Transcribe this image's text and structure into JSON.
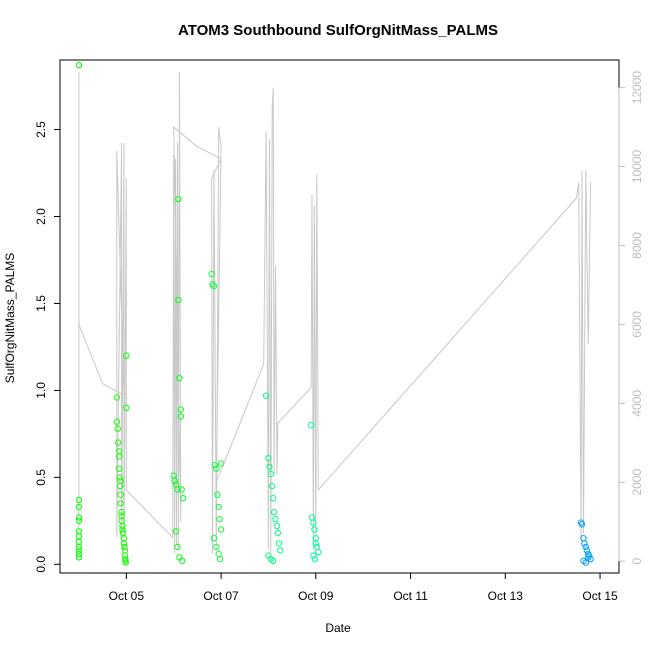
{
  "chart_data": {
    "type": "scatter",
    "title": "ATOM3 Southbound SulfOrgNitMass_PALMS",
    "xlabel": "Date",
    "ylabel": "SulfOrgNitMass_PALMS",
    "x_ticks": [
      "Oct 05",
      "Oct 07",
      "Oct 09",
      "Oct 11",
      "Oct 13",
      "Oct 15"
    ],
    "y_ticks": [
      "0.0",
      "0.5",
      "1.0",
      "1.5",
      "2.0",
      "2.5"
    ],
    "y2_ticks": [
      "0",
      "2000",
      "4000",
      "6000",
      "8000",
      "10000",
      "12000"
    ],
    "xlim": [
      "Oct 03.6",
      "Oct 15.4"
    ],
    "ylim": [
      -0.05,
      2.9
    ],
    "y2lim": [
      -300,
      12700
    ],
    "grid": false,
    "point_series": [
      {
        "name": "",
        "color": "#00ff00",
        "x": [
          4.0,
          4.0,
          4.0,
          4.0,
          4.0,
          4.0,
          4.0,
          4.0,
          4.0,
          4.0,
          4.0,
          4.0
        ],
        "y": [
          2.87,
          0.37,
          0.33,
          0.27,
          0.25,
          0.19,
          0.16,
          0.13,
          0.1,
          0.08,
          0.06,
          0.04
        ]
      },
      {
        "name": "",
        "color": "#14ff00",
        "x": [
          4.8,
          4.8,
          4.82,
          4.83,
          4.85,
          4.85,
          4.86,
          4.87,
          4.88,
          4.88,
          4.9,
          4.9,
          4.9,
          4.92,
          4.92,
          4.93,
          4.95,
          4.95,
          4.96,
          4.97,
          4.97,
          4.98,
          4.98,
          4.99,
          5.0,
          5.0,
          4.85,
          4.88
        ],
        "y": [
          0.96,
          0.82,
          0.78,
          0.7,
          0.62,
          0.55,
          0.5,
          0.45,
          0.4,
          0.35,
          0.3,
          0.28,
          0.25,
          0.22,
          0.2,
          0.18,
          0.15,
          0.12,
          0.1,
          0.08,
          0.05,
          0.03,
          0.02,
          0.01,
          1.2,
          0.9,
          0.65,
          0.48
        ]
      },
      {
        "name": "",
        "color": "#0aff1e",
        "x": [
          6.0,
          6.02,
          6.05,
          6.08,
          6.1,
          6.1,
          6.12,
          6.15,
          6.15,
          6.17,
          6.2,
          6.05,
          6.08,
          6.12,
          6.18
        ],
        "y": [
          0.51,
          0.48,
          0.46,
          0.43,
          2.1,
          1.52,
          1.07,
          0.89,
          0.85,
          0.43,
          0.38,
          0.19,
          0.1,
          0.04,
          0.02
        ]
      },
      {
        "name": "",
        "color": "#10ff3c",
        "x": [
          6.8,
          6.82,
          6.85,
          6.87,
          6.9,
          6.92,
          6.95,
          6.97,
          7.0,
          7.0,
          6.85,
          6.9,
          6.95,
          6.98
        ],
        "y": [
          1.67,
          1.61,
          1.6,
          0.57,
          0.55,
          0.4,
          0.33,
          0.26,
          0.2,
          0.58,
          0.15,
          0.1,
          0.06,
          0.03
        ]
      },
      {
        "name": "",
        "color": "#00ff82",
        "x": [
          7.95,
          8.0,
          8.02,
          8.05,
          8.08,
          8.1,
          8.12,
          8.15,
          8.18,
          8.2,
          8.22,
          8.25,
          8.0,
          8.05,
          8.1
        ],
        "y": [
          0.97,
          0.61,
          0.56,
          0.52,
          0.45,
          0.38,
          0.3,
          0.26,
          0.22,
          0.18,
          0.12,
          0.08,
          0.05,
          0.03,
          0.02
        ]
      },
      {
        "name": "",
        "color": "#00ffa0",
        "x": [
          8.9,
          8.92,
          8.95,
          8.97,
          9.0,
          9.0,
          9.02,
          9.05,
          8.95,
          8.98
        ],
        "y": [
          0.8,
          0.27,
          0.24,
          0.2,
          0.15,
          0.12,
          0.1,
          0.07,
          0.05,
          0.03
        ]
      },
      {
        "name": "",
        "color": "#00a0ff",
        "x": [
          14.6,
          14.62,
          14.65,
          14.67,
          14.7,
          14.72,
          14.75,
          14.77,
          14.8,
          14.65,
          14.7,
          14.75
        ],
        "y": [
          0.24,
          0.23,
          0.15,
          0.12,
          0.1,
          0.08,
          0.06,
          0.05,
          0.03,
          0.02,
          0.01,
          0.04
        ]
      }
    ],
    "altitude_series": {
      "name": "",
      "axis": "right",
      "color": "#c8c8c8",
      "points": [
        [
          4.0,
          500
        ],
        [
          4.0,
          12400
        ],
        [
          4.0,
          6000
        ],
        [
          4.5,
          4500
        ],
        [
          4.95,
          4200
        ],
        [
          4.8,
          10400
        ],
        [
          4.8,
          600
        ],
        [
          4.9,
          10600
        ],
        [
          4.9,
          300
        ],
        [
          4.95,
          10600
        ],
        [
          4.95,
          200
        ],
        [
          5.0,
          9700
        ],
        [
          5.0,
          1800
        ],
        [
          5.98,
          600
        ],
        [
          6.0,
          10300
        ],
        [
          6.02,
          200
        ],
        [
          6.04,
          10200
        ],
        [
          6.06,
          400
        ],
        [
          6.08,
          10600
        ],
        [
          6.1,
          300
        ],
        [
          6.12,
          12400
        ],
        [
          6.15,
          1000
        ],
        [
          6.0,
          11000
        ],
        [
          6.5,
          10500
        ],
        [
          7.0,
          10200
        ],
        [
          6.8,
          9700
        ],
        [
          6.82,
          200
        ],
        [
          6.85,
          9900
        ],
        [
          6.9,
          300
        ],
        [
          6.95,
          11000
        ],
        [
          7.0,
          10500
        ],
        [
          6.9,
          2000
        ],
        [
          7.9,
          5000
        ],
        [
          7.95,
          10900
        ],
        [
          8.0,
          300
        ],
        [
          8.02,
          10700
        ],
        [
          8.05,
          200
        ],
        [
          8.08,
          11500
        ],
        [
          8.1,
          12000
        ],
        [
          8.12,
          2200
        ],
        [
          8.15,
          7500
        ],
        [
          8.18,
          2200
        ],
        [
          8.2,
          3500
        ],
        [
          8.9,
          4400
        ],
        [
          8.92,
          9300
        ],
        [
          8.95,
          300
        ],
        [
          8.97,
          9000
        ],
        [
          9.0,
          400
        ],
        [
          9.02,
          9800
        ],
        [
          9.05,
          2500
        ],
        [
          9.05,
          1800
        ],
        [
          14.5,
          9200
        ],
        [
          14.55,
          9600
        ],
        [
          14.6,
          500
        ],
        [
          14.62,
          9900
        ],
        [
          14.65,
          700
        ],
        [
          14.7,
          9900
        ],
        [
          14.75,
          5500
        ],
        [
          14.8,
          9600
        ]
      ]
    }
  }
}
